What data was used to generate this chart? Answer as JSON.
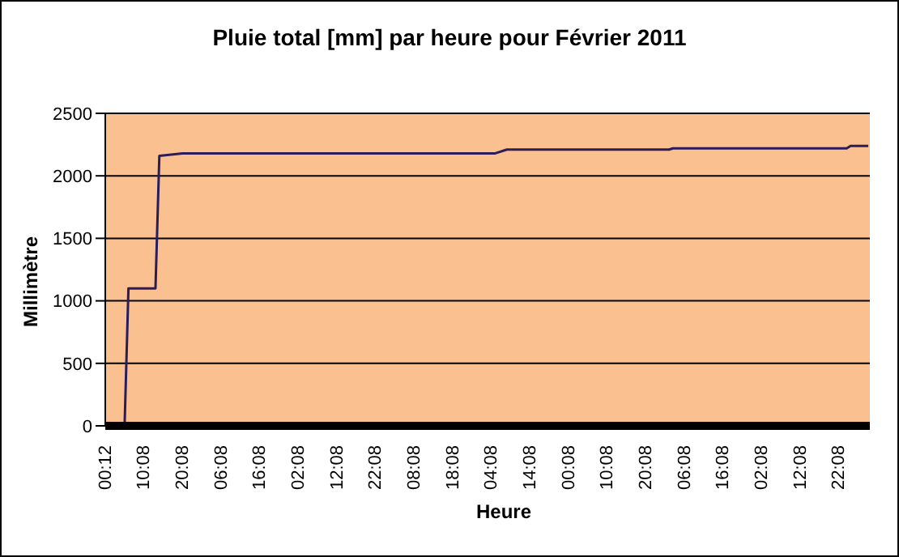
{
  "chart_data": {
    "type": "line",
    "title": "Pluie total [mm] par heure pour Février 2011",
    "xlabel": "Heure",
    "ylabel": "Millimètre",
    "x": [
      "2011-02-01T00:12",
      "2011-02-01T05:00",
      "2011-02-01T06:00",
      "2011-02-01T13:00",
      "2011-02-01T14:00",
      "2011-02-01T20:00",
      "2011-02-05T05:00",
      "2011-02-05T08:00",
      "2011-02-07T02:00",
      "2011-02-07T03:00",
      "2011-02-09T00:00",
      "2011-02-09T01:00",
      "2011-02-09T05:36"
    ],
    "series": [
      {
        "color": "#2b1d5c",
        "values": [
          0,
          0,
          1100,
          1100,
          2160,
          2180,
          2180,
          2210,
          2210,
          2220,
          2220,
          2240,
          2240
        ]
      }
    ],
    "xlim": [
      "2011-02-01T00:00",
      "2011-02-09T06:00"
    ],
    "xticks": [
      {
        "value": "2011-02-01T00:12",
        "label": "00:12"
      },
      {
        "value": "2011-02-01T10:08",
        "label": "10:08"
      },
      {
        "value": "2011-02-01T20:08",
        "label": "20:08"
      },
      {
        "value": "2011-02-02T06:08",
        "label": "06:08"
      },
      {
        "value": "2011-02-02T16:08",
        "label": "16:08"
      },
      {
        "value": "2011-02-03T02:08",
        "label": "02:08"
      },
      {
        "value": "2011-02-03T12:08",
        "label": "12:08"
      },
      {
        "value": "2011-02-03T22:08",
        "label": "22:08"
      },
      {
        "value": "2011-02-04T08:08",
        "label": "08:08"
      },
      {
        "value": "2011-02-04T18:08",
        "label": "18:08"
      },
      {
        "value": "2011-02-05T04:08",
        "label": "04:08"
      },
      {
        "value": "2011-02-05T14:08",
        "label": "14:08"
      },
      {
        "value": "2011-02-06T00:08",
        "label": "00:08"
      },
      {
        "value": "2011-02-06T10:08",
        "label": "10:08"
      },
      {
        "value": "2011-02-06T20:08",
        "label": "20:08"
      },
      {
        "value": "2011-02-07T06:08",
        "label": "06:08"
      },
      {
        "value": "2011-02-07T16:08",
        "label": "16:08"
      },
      {
        "value": "2011-02-08T02:08",
        "label": "02:08"
      },
      {
        "value": "2011-02-08T12:08",
        "label": "12:08"
      },
      {
        "value": "2011-02-08T22:08",
        "label": "22:08"
      }
    ],
    "ylim": [
      0,
      2500
    ],
    "yticks": [
      0,
      500,
      1000,
      1500,
      2000,
      2500
    ],
    "grid": "y",
    "marker": "none",
    "line_style": "solid"
  }
}
